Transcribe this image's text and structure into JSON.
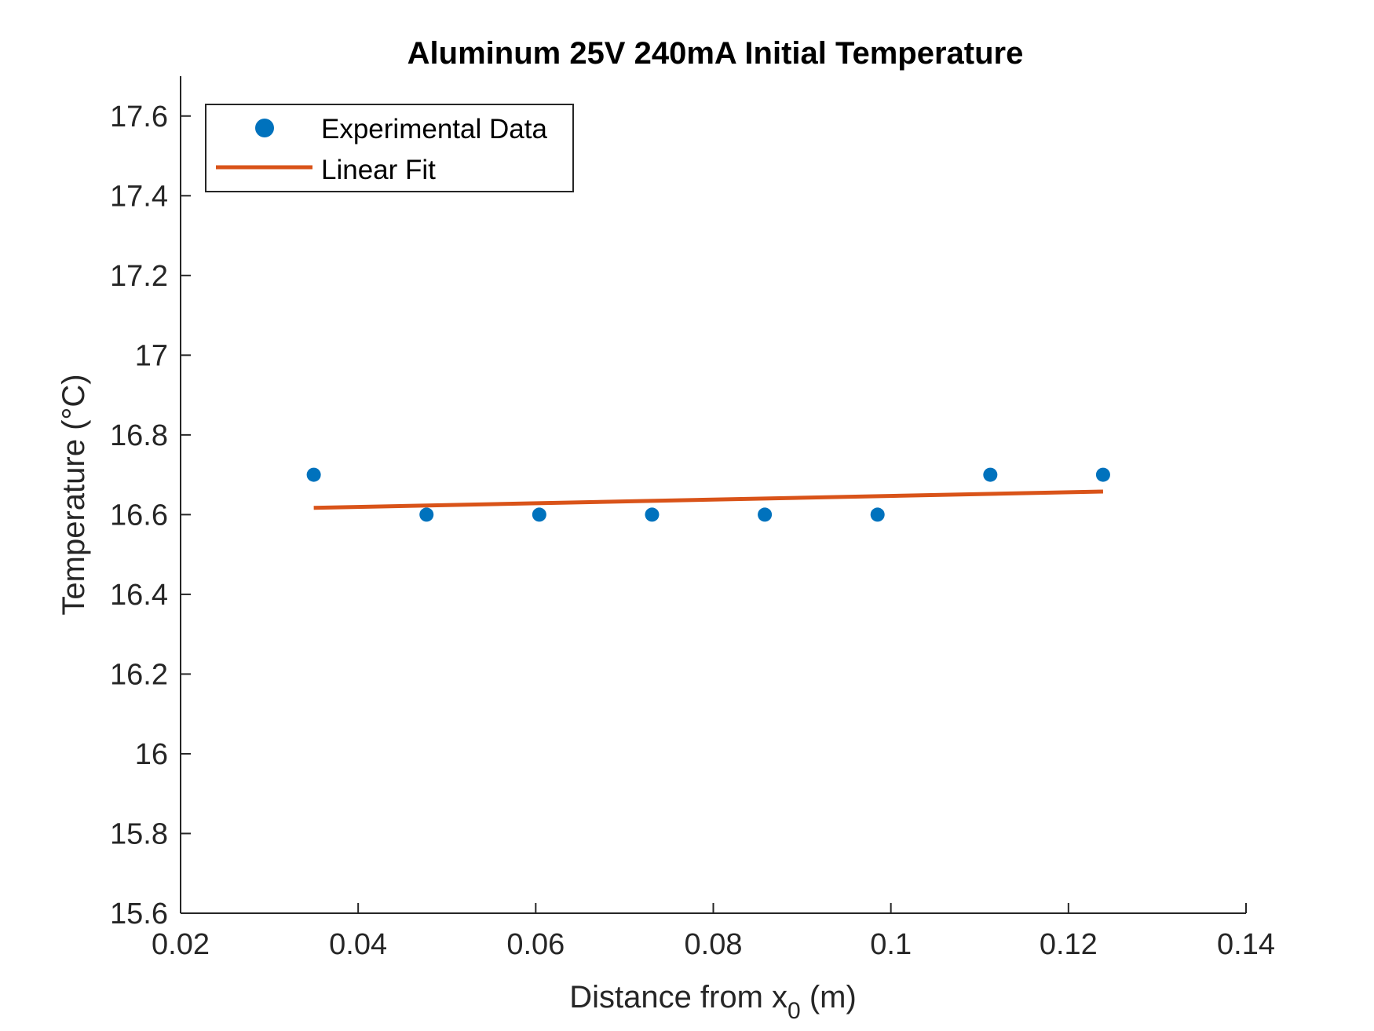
{
  "chart_data": {
    "type": "scatter",
    "title": "Aluminum 25V 240mA Initial Temperature",
    "xlabel_main": "Distance from x",
    "xlabel_sub": "0",
    "xlabel_tail": " (m)",
    "ylabel": "Temperature (°C)",
    "xlim": [
      0.02,
      0.14
    ],
    "ylim": [
      15.6,
      17.7
    ],
    "x_ticks": [
      {
        "value": 0.02,
        "label": "0.02"
      },
      {
        "value": 0.04,
        "label": "0.04"
      },
      {
        "value": 0.06,
        "label": "0.06"
      },
      {
        "value": 0.08,
        "label": "0.08"
      },
      {
        "value": 0.1,
        "label": "0.1"
      },
      {
        "value": 0.12,
        "label": "0.12"
      },
      {
        "value": 0.14,
        "label": "0.14"
      }
    ],
    "y_ticks": [
      {
        "value": 15.6,
        "label": "15.6"
      },
      {
        "value": 15.8,
        "label": "15.8"
      },
      {
        "value": 16.0,
        "label": "16"
      },
      {
        "value": 16.2,
        "label": "16.2"
      },
      {
        "value": 16.4,
        "label": "16.4"
      },
      {
        "value": 16.6,
        "label": "16.6"
      },
      {
        "value": 16.8,
        "label": "16.8"
      },
      {
        "value": 17.0,
        "label": "17"
      },
      {
        "value": 17.2,
        "label": "17.2"
      },
      {
        "value": 17.4,
        "label": "17.4"
      },
      {
        "value": 17.6,
        "label": "17.6"
      }
    ],
    "series": [
      {
        "name": "Experimental Data",
        "kind": "scatter",
        "color": "#0072BD",
        "points": [
          {
            "x": 0.035,
            "y": 16.7
          },
          {
            "x": 0.0477,
            "y": 16.6
          },
          {
            "x": 0.0604,
            "y": 16.6
          },
          {
            "x": 0.0731,
            "y": 16.6
          },
          {
            "x": 0.0858,
            "y": 16.6
          },
          {
            "x": 0.0985,
            "y": 16.6
          },
          {
            "x": 0.1112,
            "y": 16.7
          },
          {
            "x": 0.1239,
            "y": 16.7
          }
        ]
      },
      {
        "name": "Linear Fit",
        "kind": "line",
        "color": "#D95319",
        "points": [
          {
            "x": 0.035,
            "y": 16.617
          },
          {
            "x": 0.1239,
            "y": 16.658
          }
        ]
      }
    ],
    "legend_position": "top-left",
    "grid": false
  }
}
